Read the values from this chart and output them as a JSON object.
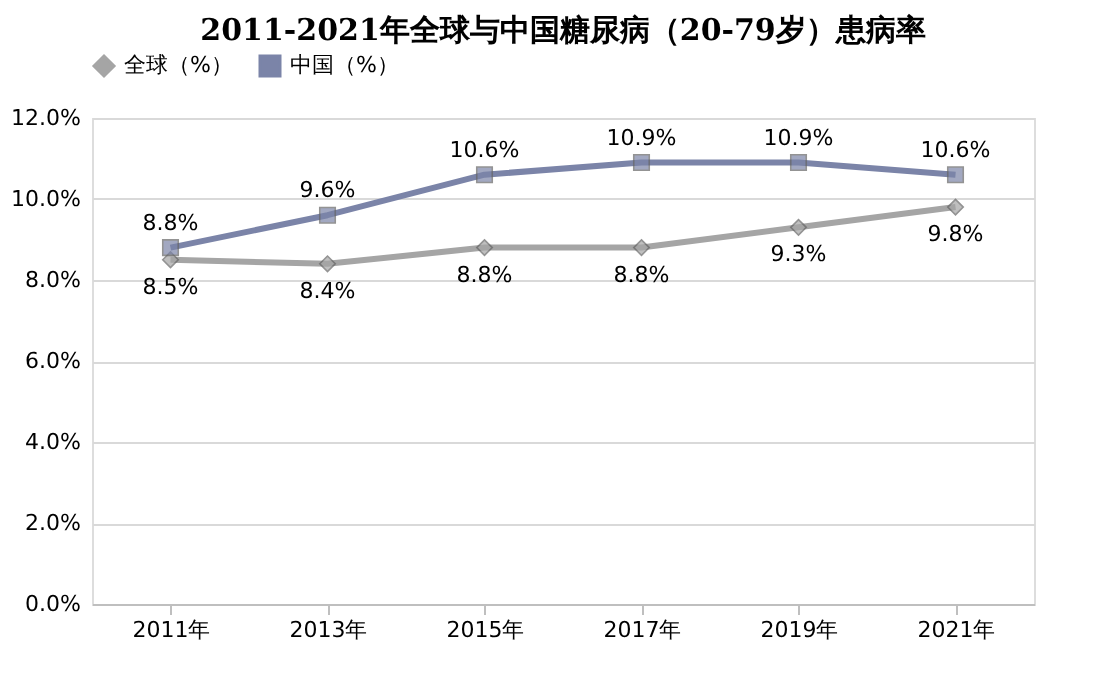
{
  "chart_data": {
    "type": "line",
    "title": "2011-2021年全球与中国糖尿病（20-79岁）患病率",
    "categories": [
      "2011年",
      "2013年",
      "2015年",
      "2017年",
      "2019年",
      "2021年"
    ],
    "series": [
      {
        "name": "全球（%）",
        "color": "#a5a5a5",
        "marker": "diamond",
        "values": [
          8.5,
          8.4,
          8.8,
          8.8,
          9.3,
          9.8
        ],
        "value_labels": [
          "8.5%",
          "8.4%",
          "8.8%",
          "8.8%",
          "9.3%",
          "9.8%"
        ]
      },
      {
        "name": "中国（%）",
        "color": "#7b84a8",
        "marker": "square",
        "values": [
          8.8,
          9.6,
          10.6,
          10.9,
          10.9,
          10.6
        ],
        "value_labels": [
          "8.8%",
          "9.6%",
          "10.6%",
          "10.9%",
          "10.9%",
          "10.6%"
        ]
      }
    ],
    "ylim": [
      0,
      12
    ],
    "yticks": [
      {
        "value": 0,
        "label": "0.0%"
      },
      {
        "value": 2,
        "label": "2.0%"
      },
      {
        "value": 4,
        "label": "4.0%"
      },
      {
        "value": 6,
        "label": "6.0%"
      },
      {
        "value": 8,
        "label": "8.0%"
      },
      {
        "value": 10,
        "label": "10.0%"
      },
      {
        "value": 12,
        "label": "12.0%"
      }
    ],
    "grid": "y",
    "legend": "top",
    "line_style": "solid"
  }
}
